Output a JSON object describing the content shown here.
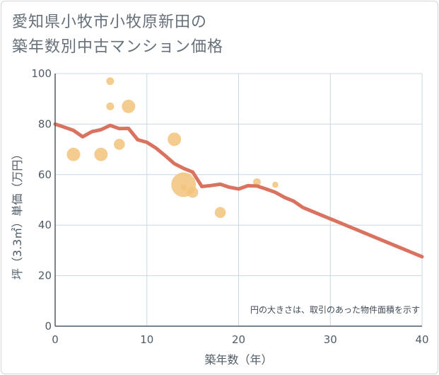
{
  "title": {
    "line1": "愛知県小牧市小牧原新田の",
    "line2": "築年数別中古マンション価格"
  },
  "colors": {
    "line": "#d9735f",
    "bubble": "#f3c37b",
    "grid": "#c9d7e6",
    "axis": "#4f5b66"
  },
  "chart_data": {
    "type": "scatter",
    "xlabel": "築年数（年）",
    "ylabel": "坪（3.3㎡）単価（万円）",
    "xlim": [
      0,
      40
    ],
    "ylim": [
      0,
      100
    ],
    "xticks": [
      "0",
      "10",
      "20",
      "30",
      "40"
    ],
    "yticks": [
      "0",
      "20",
      "40",
      "60",
      "80",
      "100"
    ],
    "grid": true,
    "note": "円の大きさは、取引のあった物件面積を示す",
    "bubbles": [
      {
        "x": 2,
        "y": 68,
        "size": 3
      },
      {
        "x": 5,
        "y": 68,
        "size": 3
      },
      {
        "x": 6,
        "y": 97,
        "size": 1
      },
      {
        "x": 6,
        "y": 87,
        "size": 1
      },
      {
        "x": 7,
        "y": 72,
        "size": 2
      },
      {
        "x": 8,
        "y": 87,
        "size": 3
      },
      {
        "x": 13,
        "y": 74,
        "size": 3
      },
      {
        "x": 14,
        "y": 56,
        "size": 10
      },
      {
        "x": 14,
        "y": 55,
        "size": 0.6
      },
      {
        "x": 15,
        "y": 53,
        "size": 2
      },
      {
        "x": 18,
        "y": 45,
        "size": 2
      },
      {
        "x": 22,
        "y": 57,
        "size": 1
      },
      {
        "x": 24,
        "y": 56,
        "size": 0.6
      }
    ],
    "trend": {
      "x": [
        0,
        1,
        2,
        3,
        4,
        5,
        6,
        7,
        8,
        9,
        10,
        11,
        12,
        13,
        14,
        15,
        16,
        17,
        18,
        19,
        20,
        21,
        22,
        23,
        24,
        25,
        26,
        27,
        28,
        29,
        30,
        31,
        32,
        33,
        34,
        35,
        36,
        37,
        38,
        39,
        40
      ],
      "y": [
        80,
        78.8,
        77.5,
        75,
        77,
        77.8,
        79.5,
        78.2,
        78.3,
        73.8,
        72.8,
        70.5,
        67.5,
        64.3,
        62.5,
        61,
        55.3,
        55.7,
        56.2,
        55,
        54.3,
        55.6,
        55.5,
        54.3,
        53,
        51,
        49.5,
        47,
        45.5,
        44,
        42.5,
        41,
        39.5,
        38,
        36.5,
        35,
        33.5,
        32,
        30.5,
        29,
        27.5
      ]
    }
  }
}
